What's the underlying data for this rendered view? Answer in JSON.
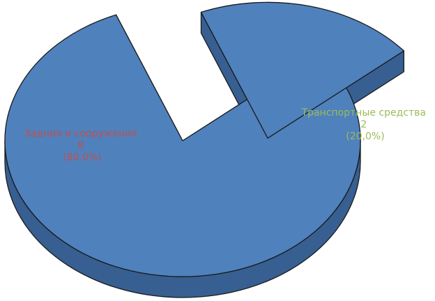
{
  "chart_data": {
    "type": "pie",
    "title": "",
    "style": "3d-exploded",
    "slices": [
      {
        "category": "Задния и сооружения",
        "value": 8,
        "value_text": "8",
        "percent_text": "(80,0%)",
        "label_color": "#c0504d",
        "fill": "#4f81bd",
        "side_fill": "#375f91"
      },
      {
        "category": "Транспортные средства",
        "value": 2,
        "value_text": "2",
        "percent_text": "(20,0%)",
        "label_color": "#9bbb59",
        "fill": "#4f81bd",
        "side_fill": "#375f91"
      }
    ]
  }
}
